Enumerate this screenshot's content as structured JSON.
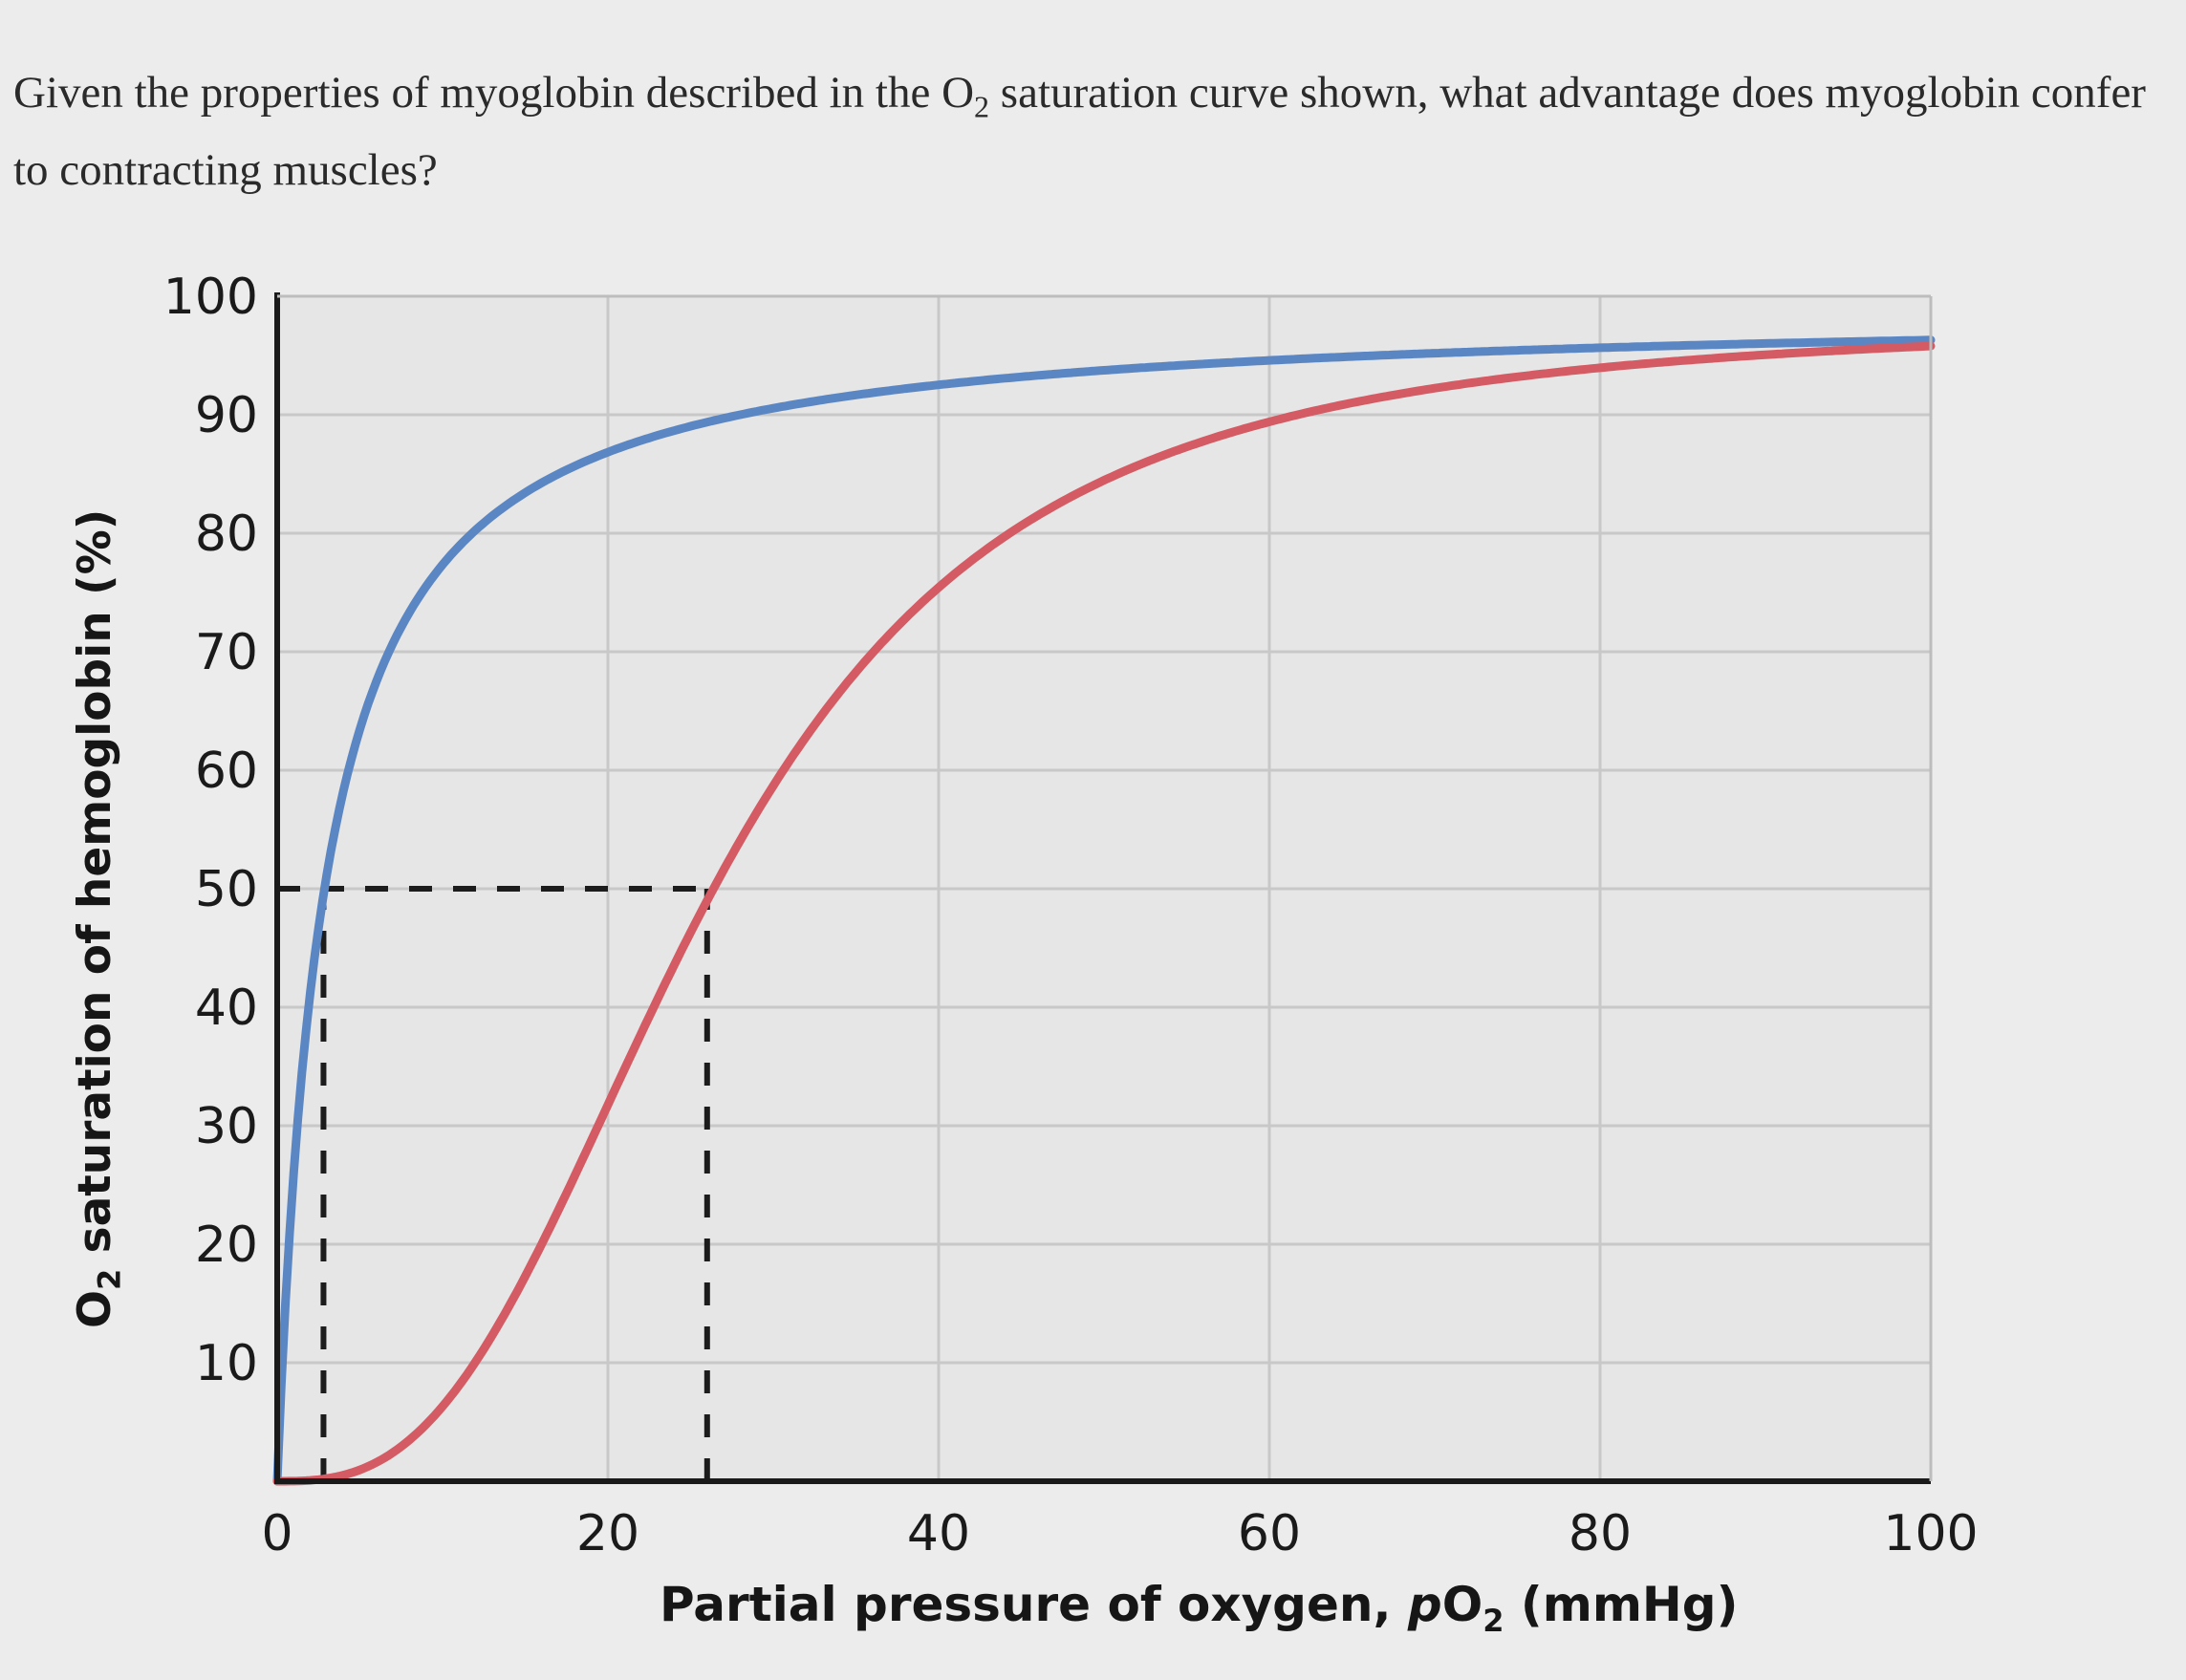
{
  "question": {
    "part1": "Given the properties of myoglobin described in the O",
    "sub": "2",
    "part2": " saturation curve shown, what advantage does myoglobin confer to contracting muscles?"
  },
  "chart_data": {
    "type": "line",
    "title": "",
    "xlabel": {
      "prefix": "Partial pressure of oxygen, ",
      "var": "p",
      "chem": "O",
      "sub": "2",
      "unit": " (mmHg)"
    },
    "ylabel": {
      "chem": "O",
      "sub": "2",
      "rest": " saturation of hemoglobin (%)"
    },
    "xlim": [
      0,
      100
    ],
    "ylim": [
      0,
      100
    ],
    "x_ticks": [
      "0",
      "20",
      "40",
      "60",
      "80",
      "100"
    ],
    "y_ticks": [
      "10",
      "20",
      "30",
      "40",
      "50",
      "60",
      "70",
      "80",
      "90",
      "100"
    ],
    "grid": true,
    "series": [
      {
        "color": "#5b86c4",
        "p50": 2.8,
        "n": 1,
        "max": 99,
        "values": [
          [
            0,
            0
          ],
          [
            1,
            26
          ],
          [
            2,
            41
          ],
          [
            2.8,
            50
          ],
          [
            5,
            64
          ],
          [
            10,
            78
          ],
          [
            20,
            87
          ],
          [
            30,
            91
          ],
          [
            40,
            93
          ],
          [
            60,
            95.5
          ],
          [
            80,
            96.7
          ],
          [
            100,
            97.3
          ]
        ]
      },
      {
        "color": "#d45b63",
        "p50": 26,
        "n": 2.8,
        "max": 98,
        "values": [
          [
            0,
            0
          ],
          [
            5,
            1
          ],
          [
            10,
            6
          ],
          [
            15,
            16
          ],
          [
            20,
            33
          ],
          [
            26,
            50
          ],
          [
            30,
            60
          ],
          [
            35,
            71
          ],
          [
            40,
            78
          ],
          [
            50,
            88
          ],
          [
            60,
            93
          ],
          [
            80,
            96
          ],
          [
            100,
            97
          ]
        ]
      }
    ],
    "reference_lines": [
      {
        "y": 50,
        "x_from": 0,
        "x_to": 26
      },
      {
        "x": 2.8,
        "y_from": 0,
        "y_to": 50
      },
      {
        "x": 26,
        "y_from": 0,
        "y_to": 50
      }
    ]
  }
}
